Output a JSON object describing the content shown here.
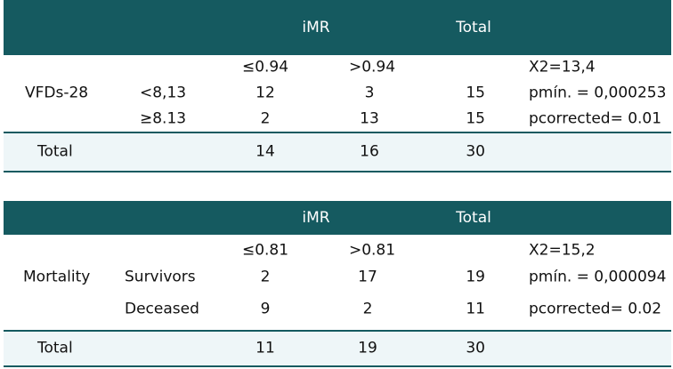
{
  "tables": [
    {
      "header": {
        "imr": "iMR",
        "total": "Total"
      },
      "subheader": {
        "le": "≤0.94",
        "gt": ">0.94"
      },
      "row_label": "VFDs-28",
      "rows": [
        {
          "label": "<8,13",
          "le": "12",
          "gt": "3",
          "total": "15",
          "stat": "pmín. = 0,000253"
        },
        {
          "label": "≥8.13",
          "le": "2",
          "gt": "13",
          "total": "15",
          "stat": "pcorrected= 0.01"
        }
      ],
      "chi": "X2=13,4",
      "total_row": {
        "label": "Total",
        "le": "14",
        "gt": "16",
        "total": "30"
      }
    },
    {
      "header": {
        "imr": "iMR",
        "total": "Total"
      },
      "subheader": {
        "le": "≤0.81",
        "gt": ">0.81"
      },
      "row_label": "Mortality",
      "rows": [
        {
          "label": "Survivors",
          "le": "2",
          "gt": "17",
          "total": "19",
          "stat": "pmín. = 0,000094"
        },
        {
          "label": "Deceased",
          "le": "9",
          "gt": "2",
          "total": "11",
          "stat": "pcorrected= 0.02"
        }
      ],
      "chi": "X2=15,2",
      "total_row": {
        "label": "Total",
        "le": "11",
        "gt": "19",
        "total": "30"
      }
    }
  ]
}
